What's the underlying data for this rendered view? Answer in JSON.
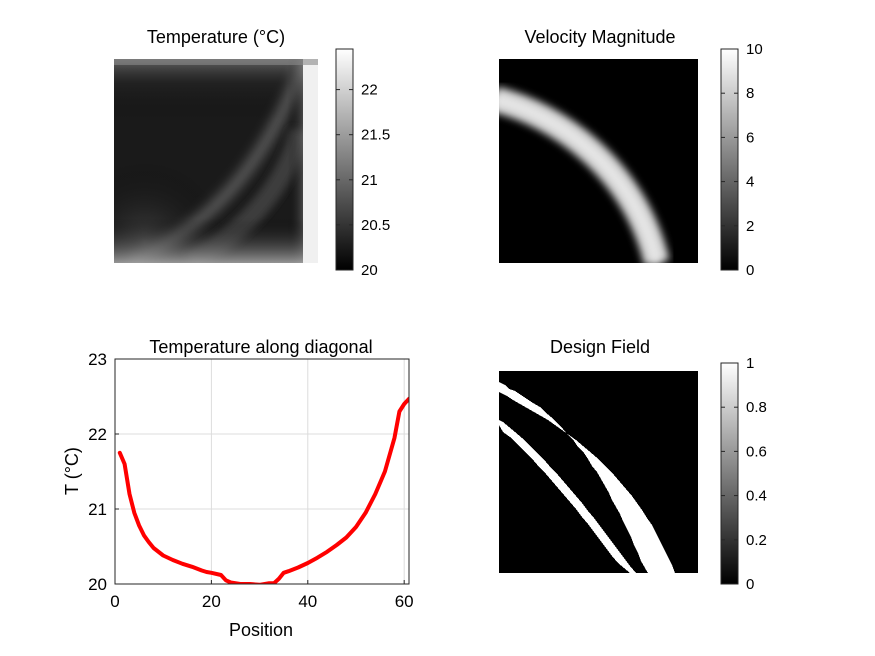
{
  "chart_data": [
    {
      "type": "heatmap",
      "title": "Temperature (°C)",
      "colormap": "gray",
      "colorbar": {
        "range": [
          20,
          22.45
        ],
        "ticks": [
          20,
          20.5,
          21,
          21.5,
          22
        ],
        "tick_labels": [
          "20",
          "20.5",
          "21",
          "21.5",
          "22"
        ]
      },
      "description_values": {
        "min": 20,
        "max": 22.45
      }
    },
    {
      "type": "heatmap",
      "title": "Velocity Magnitude",
      "colormap": "gray",
      "colorbar": {
        "range": [
          0,
          10
        ],
        "ticks": [
          0,
          2,
          4,
          6,
          8,
          10
        ],
        "tick_labels": [
          "0",
          "2",
          "4",
          "6",
          "8",
          "10"
        ]
      },
      "description_values": {
        "min": 0,
        "max": 10
      }
    },
    {
      "type": "line",
      "title": "Temperature along diagonal",
      "xlabel": "Position",
      "ylabel": "T (°C)",
      "xlim": [
        0,
        61
      ],
      "ylim": [
        20,
        23
      ],
      "grid": true,
      "x_ticks": [
        0,
        20,
        40,
        60
      ],
      "x_tick_labels": [
        "0",
        "20",
        "40",
        "60"
      ],
      "y_ticks": [
        20,
        21,
        22,
        23
      ],
      "y_tick_labels": [
        "20",
        "21",
        "22",
        "23"
      ],
      "series": [
        {
          "color": "#ff0000",
          "x": [
            1,
            2,
            3,
            4,
            5,
            6,
            7,
            8,
            10,
            12,
            14,
            16,
            18,
            19,
            20,
            22,
            23,
            24,
            26,
            28,
            30,
            32,
            33,
            34,
            35,
            36,
            38,
            40,
            42,
            44,
            46,
            48,
            50,
            52,
            54,
            56,
            58,
            59,
            60,
            61
          ],
          "y": [
            21.75,
            21.6,
            21.2,
            20.95,
            20.78,
            20.65,
            20.56,
            20.48,
            20.38,
            20.32,
            20.27,
            20.23,
            20.18,
            20.16,
            20.15,
            20.12,
            20.05,
            20.02,
            20.0,
            20.0,
            19.99,
            20.01,
            20.01,
            20.07,
            20.15,
            20.17,
            20.22,
            20.28,
            20.35,
            20.43,
            20.52,
            20.62,
            20.76,
            20.95,
            21.2,
            21.5,
            21.95,
            22.3,
            22.4,
            22.47
          ]
        }
      ]
    },
    {
      "type": "heatmap",
      "title": "Design Field",
      "colormap": "gray",
      "colorbar": {
        "range": [
          0,
          1
        ],
        "ticks": [
          0,
          0.2,
          0.4,
          0.6,
          0.8,
          1
        ],
        "tick_labels": [
          "0",
          "0.2",
          "0.4",
          "0.6",
          "0.8",
          "1"
        ]
      },
      "description_values": {
        "min": 0,
        "max": 1
      }
    }
  ]
}
